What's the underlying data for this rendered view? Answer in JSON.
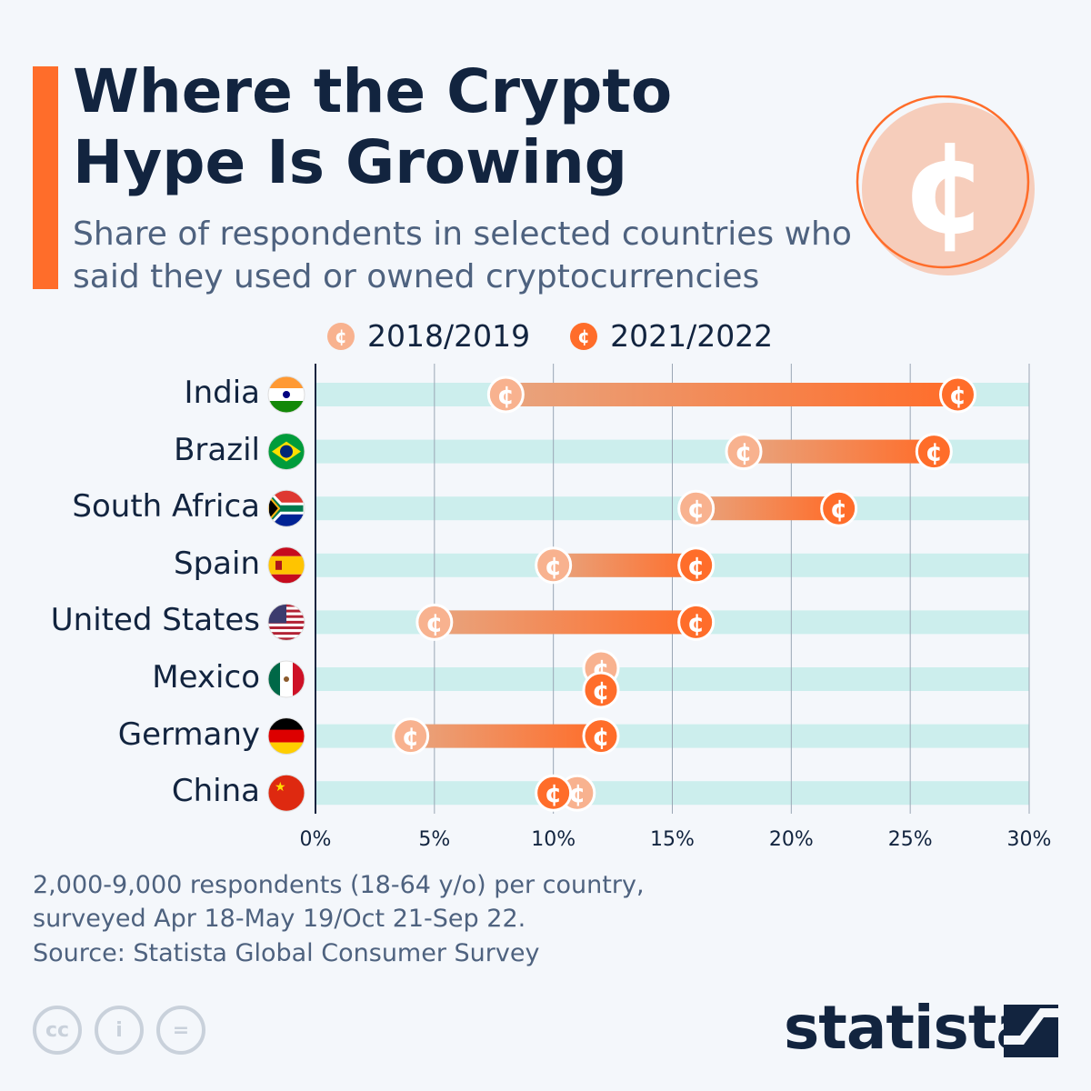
{
  "title": "Where the Crypto Hype Is Growing",
  "subtitle": "Share of respondents in selected countries who said they used or owned cryptocurrencies",
  "footnote_lines": [
    "2,000-9,000 respondents (18-64 y/o) per country,",
    "surveyed Apr 18-May 19/Oct 21-Sep 22."
  ],
  "source": "Source: Statista Global Consumer Survey",
  "brand": "statista",
  "icons": {
    "header": "cent-coin-icon",
    "legend_marker": "cent-coin-icon",
    "license": [
      "cc-icon",
      "attribution-icon",
      "no-derivatives-icon"
    ]
  },
  "colors": {
    "accent": "#ff6d2a",
    "light": "#f8b28f",
    "dark": "#ff6d2a",
    "track": "#cceeed",
    "text": "#12243f"
  },
  "chart_data": {
    "type": "dumbbell",
    "categories": [
      "India",
      "Brazil",
      "South Africa",
      "Spain",
      "United States",
      "Mexico",
      "Germany",
      "China"
    ],
    "series": [
      {
        "name": "2018/2019",
        "values": [
          8,
          18,
          16,
          10,
          5,
          12,
          4,
          11
        ]
      },
      {
        "name": "2021/2022",
        "values": [
          27,
          26,
          22,
          16,
          16,
          12,
          12,
          10
        ]
      }
    ],
    "xlim": [
      0,
      30
    ],
    "xticks": [
      "0%",
      "5%",
      "10%",
      "15%",
      "20%",
      "25%",
      "30%"
    ],
    "grid": true,
    "legend": "top"
  }
}
